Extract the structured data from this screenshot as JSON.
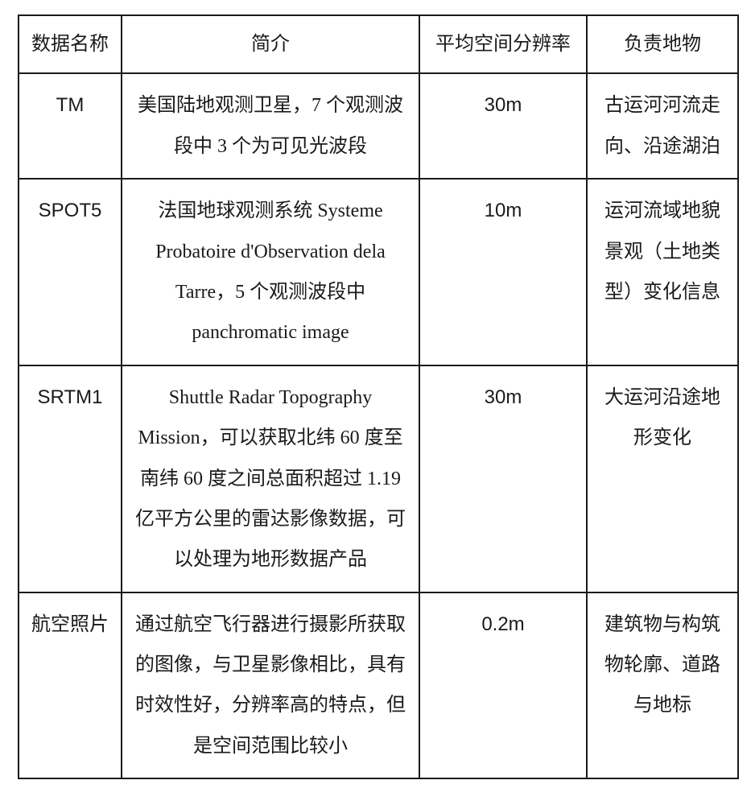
{
  "table": {
    "headers": [
      "数据名称",
      "简介",
      "平均空间分辨率",
      "负责地物"
    ],
    "rows": [
      {
        "name": "TM",
        "desc": "美国陆地观测卫星，7 个观测波段中 3 个为可见光波段",
        "res": "30m",
        "feat": "古运河河流走向、沿途湖泊"
      },
      {
        "name": "SPOT5",
        "desc": "法国地球观测系统 Systeme Probatoire d'Observation dela Tarre，5 个观测波段中 panchromatic image",
        "res": "10m",
        "feat": "运河流域地貌景观（土地类型）变化信息"
      },
      {
        "name": "SRTM1",
        "desc": "Shuttle Radar Topography Mission，可以获取北纬 60 度至南纬 60 度之间总面积超过 1.19 亿平方公里的雷达影像数据，可以处理为地形数据产品",
        "res": "30m",
        "feat": "大运河沿途地形变化"
      },
      {
        "name": "航空照片",
        "desc": "通过航空飞行器进行摄影所获取的图像，与卫星影像相比，具有时效性好，分辨率高的特点，但是空间范围比较小",
        "res": "0.2m",
        "feat": "建筑物与构筑物轮廓、道路与地标"
      }
    ]
  }
}
